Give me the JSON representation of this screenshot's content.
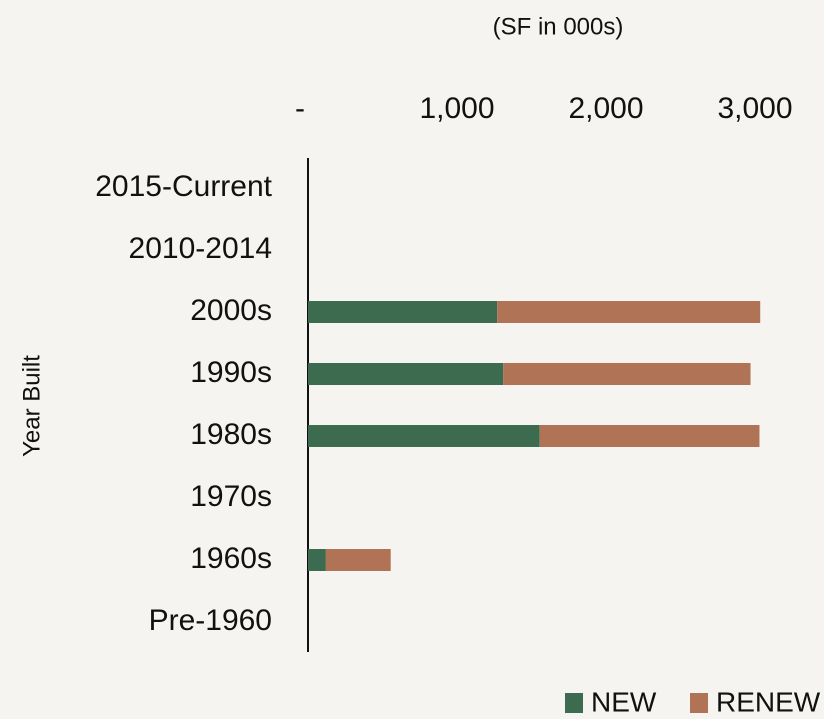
{
  "chart_data": {
    "type": "bar",
    "orientation": "horizontal",
    "stacked": true,
    "title": "(SF in 000s)",
    "y_label": "Year Built",
    "categories": [
      "2015-Current",
      "2010-2014",
      "2000s",
      "1990s",
      "1980s",
      "1970s",
      "1960s",
      "Pre-1960"
    ],
    "series": [
      {
        "name": "NEW",
        "color": "#3d6b4f",
        "values": [
          0,
          0,
          1270,
          1310,
          1555,
          0,
          120,
          0
        ]
      },
      {
        "name": "RENEW",
        "color": "#b07356",
        "values": [
          0,
          0,
          1765,
          1660,
          1475,
          0,
          435,
          0
        ]
      }
    ],
    "xlim": [
      0,
      3400
    ],
    "xticks": [
      {
        "value": 0,
        "label": "-"
      },
      {
        "value": 1000,
        "label": "1,000"
      },
      {
        "value": 2000,
        "label": "2,000"
      },
      {
        "value": 3000,
        "label": "3,000"
      }
    ],
    "legend": "bottom-right"
  }
}
